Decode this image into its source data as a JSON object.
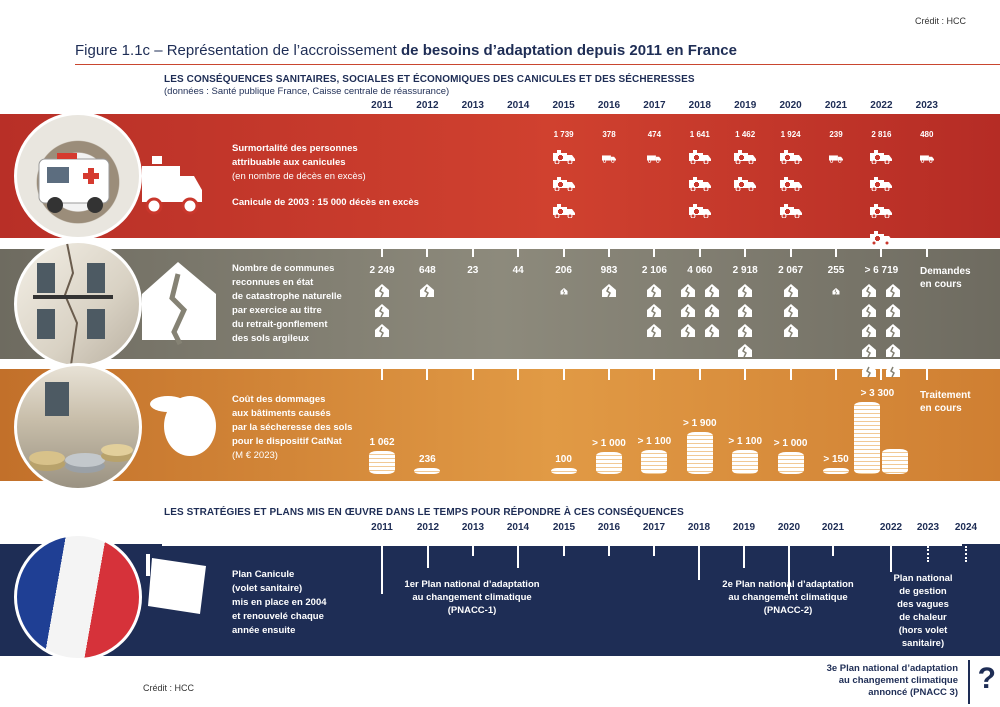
{
  "credit": "Crédit : HCC",
  "figure": {
    "title_normal": "Figure 1.1c – Représentation de l’accroissement ",
    "title_bold": "de besoins d’adaptation depuis 2011 en France"
  },
  "section1": {
    "title": "LES CONSÉQUENCES SANITAIRES, SOCIALES ET ÉCONOMIQUES DES CANICULES ET DES SÉCHERESSES",
    "subtitle": "(données : Santé publique France, Caisse centrale de réassurance)"
  },
  "section2": {
    "title": "LES STRATÉGIES ET PLANS MIS EN ŒUVRE DANS LE TEMPS POUR RÉPONDRE À CES CONSÉQUENCES"
  },
  "colors": {
    "red_band": "#c9372c",
    "grey_band": "#858274",
    "orange_band": "#dc8a36",
    "navy_band": "#1e2d55",
    "title_rule": "#c9462f"
  },
  "icons": {
    "mortality": "ambulance-icon",
    "communes": "cracked-house-icon",
    "costs": "coin-stack-icon",
    "plans": "french-flag-icon"
  },
  "chart_data": [
    {
      "type": "bar",
      "name": "mortality",
      "categories": [
        "2011",
        "2012",
        "2013",
        "2014",
        "2015",
        "2016",
        "2017",
        "2018",
        "2019",
        "2020",
        "2021",
        "2022",
        "2023"
      ],
      "labels": [
        "",
        "",
        "",
        "",
        "1 739",
        "378",
        "474",
        "1 641",
        "1 462",
        "1 924",
        "239",
        "2 816",
        "480"
      ],
      "values": [
        null,
        null,
        null,
        null,
        1739,
        378,
        474,
        1641,
        1462,
        1924,
        239,
        2816,
        480
      ],
      "text": {
        "line1": "Surmortalité des personnes",
        "line2": "attribuable aux canicules",
        "unit": "(en nombre de décès en excès)",
        "note": "Canicule de 2003 : 15 000 décès en excès"
      }
    },
    {
      "type": "bar",
      "name": "communes",
      "categories": [
        "2011",
        "2012",
        "2013",
        "2014",
        "2015",
        "2016",
        "2017",
        "2018",
        "2019",
        "2020",
        "2021",
        "2022",
        "2023"
      ],
      "labels": [
        "2 249",
        "648",
        "23",
        "44",
        "206",
        "983",
        "2 106",
        "4 060",
        "2 918",
        "2 067",
        "255",
        "> 6 719",
        ""
      ],
      "values": [
        2249,
        648,
        23,
        44,
        206,
        983,
        2106,
        4060,
        2918,
        2067,
        255,
        6719,
        null
      ],
      "pending": "Demandes\nen cours",
      "text": [
        "Nombre de communes",
        "reconnues en état",
        "de catastrophe naturelle",
        "par exercice au titre",
        "du retrait-gonflement",
        "des sols argileux"
      ]
    },
    {
      "type": "bar",
      "name": "costs",
      "categories": [
        "2011",
        "2012",
        "2013",
        "2014",
        "2015",
        "2016",
        "2017",
        "2018",
        "2019",
        "2020",
        "2021",
        "2022",
        "2023"
      ],
      "labels": [
        "1 062",
        "236",
        "",
        "",
        "100",
        "> 1 000",
        "> 1 100",
        "> 1 900",
        "> 1 100",
        "> 1 000",
        "> 150",
        "> 3 300",
        ""
      ],
      "values": [
        1062,
        236,
        null,
        null,
        100,
        1000,
        1100,
        1900,
        1100,
        1000,
        150,
        3300,
        null
      ],
      "pending": "Traitement\nen cours",
      "text": [
        "Coût des dommages",
        "aux bâtiments causés",
        "par la sécheresse des sols",
        "pour le dispositif CatNat"
      ],
      "unit": "(M € 2023)"
    }
  ],
  "timeline": {
    "years": [
      "2011",
      "2012",
      "2013",
      "2014",
      "2015",
      "2016",
      "2017",
      "2018",
      "2019",
      "2020",
      "2021",
      "2022",
      "2023",
      "2024"
    ],
    "plan_canicule": [
      "Plan Canicule",
      "(volet sanitaire)",
      "mis en place en 2004",
      "et renouvelé chaque",
      "année ensuite"
    ],
    "pnacc1": [
      "1er Plan national d’adaptation",
      "au changement climatique",
      "(PNACC-1)"
    ],
    "pnacc2": [
      "2e Plan national d’adaptation",
      "au changement climatique",
      "(PNACC-2)"
    ],
    "vagues": [
      "Plan national",
      "de gestion",
      "des vagues",
      "de chaleur",
      "(hors volet",
      "sanitaire)"
    ],
    "pnacc3": [
      "3e Plan national d’adaptation",
      "au changement climatique",
      "annoncé (PNACC 3)"
    ],
    "question": "?"
  }
}
